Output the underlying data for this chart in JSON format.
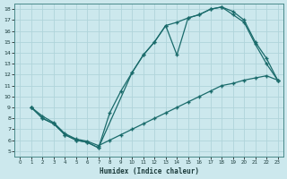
{
  "xlabel": "Humidex (Indice chaleur)",
  "bg_color": "#cce8ed",
  "grid_color": "#b0d4da",
  "line_color": "#1a6b6b",
  "xlim": [
    -0.5,
    23.5
  ],
  "ylim": [
    4.5,
    18.5
  ],
  "xticks": [
    0,
    1,
    2,
    3,
    4,
    5,
    6,
    7,
    8,
    9,
    10,
    11,
    12,
    13,
    14,
    15,
    16,
    17,
    18,
    19,
    20,
    21,
    22,
    23
  ],
  "yticks": [
    5,
    6,
    7,
    8,
    9,
    10,
    11,
    12,
    13,
    14,
    15,
    16,
    17,
    18
  ],
  "curve1_x": [
    1,
    2,
    3,
    4,
    5,
    6,
    7,
    8,
    9,
    10,
    11,
    12,
    13,
    14,
    15,
    16,
    17,
    18,
    19,
    20,
    21,
    22,
    23
  ],
  "curve1_y": [
    9.0,
    8.0,
    7.5,
    6.5,
    6.0,
    5.8,
    5.3,
    8.5,
    10.5,
    12.2,
    13.8,
    15.0,
    16.5,
    16.8,
    17.2,
    17.5,
    18.0,
    18.2,
    17.5,
    16.8,
    14.8,
    13.0,
    11.5
  ],
  "curve2_x": [
    1,
    2,
    3,
    4,
    5,
    6,
    7,
    10,
    11,
    12,
    13,
    14,
    15,
    16,
    17,
    18,
    19,
    20,
    21,
    22,
    23
  ],
  "curve2_y": [
    9.0,
    8.0,
    7.5,
    6.5,
    6.0,
    5.8,
    5.3,
    12.2,
    13.8,
    15.0,
    16.5,
    13.8,
    17.2,
    17.5,
    18.0,
    18.2,
    17.8,
    17.0,
    15.0,
    13.5,
    11.5
  ],
  "curve3_x": [
    1,
    2,
    3,
    4,
    5,
    6,
    7,
    8,
    9,
    10,
    11,
    12,
    13,
    14,
    15,
    16,
    17,
    18,
    19,
    20,
    21,
    22,
    23
  ],
  "curve3_y": [
    9.0,
    8.2,
    7.6,
    6.6,
    6.1,
    5.9,
    5.5,
    6.0,
    6.5,
    7.0,
    7.5,
    8.0,
    8.5,
    9.0,
    9.5,
    10.0,
    10.5,
    11.0,
    11.2,
    11.5,
    11.7,
    11.9,
    11.5
  ]
}
